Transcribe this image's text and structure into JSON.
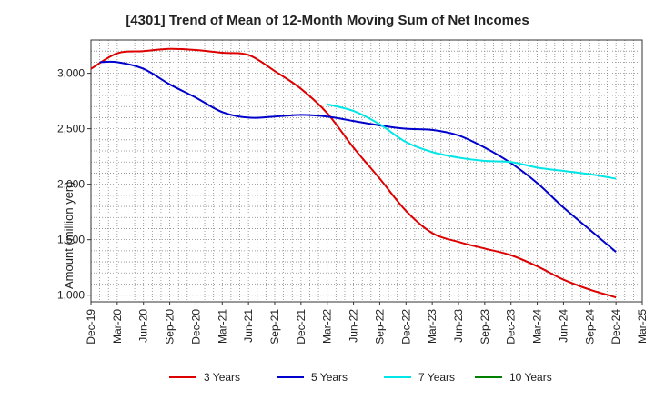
{
  "chart_data": {
    "type": "line",
    "title": "[4301]  Trend of Mean of 12-Month Moving Sum of Net Incomes",
    "ylabel": "Amount (million yen)",
    "xlabel": "",
    "ylim": [
      940,
      3300
    ],
    "yticks": [
      1000,
      1500,
      2000,
      2500,
      3000
    ],
    "ytick_labels": [
      "1,000",
      "1,500",
      "2,000",
      "2,500",
      "3,000"
    ],
    "xticks": [
      "Dec-19",
      "Mar-20",
      "Jun-20",
      "Sep-20",
      "Dec-20",
      "Mar-21",
      "Jun-21",
      "Sep-21",
      "Dec-21",
      "Mar-22",
      "Jun-22",
      "Sep-22",
      "Dec-22",
      "Mar-23",
      "Jun-23",
      "Sep-23",
      "Dec-23",
      "Mar-24",
      "Jun-24",
      "Sep-24",
      "Dec-24",
      "Mar-25"
    ],
    "grid": true,
    "legend_position": "bottom",
    "series": [
      {
        "name": "3 Years",
        "color": "#dd0000",
        "x": [
          "Dec-19",
          "Mar-20",
          "Jun-20",
          "Sep-20",
          "Dec-20",
          "Mar-21",
          "Jun-21",
          "Sep-21",
          "Dec-21",
          "Mar-22",
          "Jun-22",
          "Sep-22",
          "Dec-22",
          "Mar-23",
          "Jun-23",
          "Sep-23",
          "Dec-23",
          "Mar-24",
          "Jun-24",
          "Sep-24",
          "Dec-24"
        ],
        "values": [
          3040,
          3180,
          3200,
          3220,
          3210,
          3185,
          3165,
          3020,
          2860,
          2640,
          2330,
          2050,
          1760,
          1560,
          1480,
          1420,
          1360,
          1260,
          1140,
          1050,
          980
        ]
      },
      {
        "name": "5 Years",
        "color": "#0000cc",
        "x": [
          "Jan-20",
          "Mar-20",
          "Jun-20",
          "Sep-20",
          "Dec-20",
          "Mar-21",
          "Jun-21",
          "Sep-21",
          "Dec-21",
          "Mar-22",
          "Jun-22",
          "Sep-22",
          "Dec-22",
          "Mar-23",
          "Jun-23",
          "Sep-23",
          "Dec-23",
          "Mar-24",
          "Jun-24",
          "Sep-24",
          "Dec-24"
        ],
        "values": [
          3100,
          3100,
          3040,
          2900,
          2780,
          2650,
          2600,
          2610,
          2625,
          2610,
          2570,
          2530,
          2500,
          2490,
          2440,
          2330,
          2190,
          2010,
          1790,
          1590,
          1390
        ]
      },
      {
        "name": "7 Years",
        "color": "#00e6e6",
        "x": [
          "Mar-22",
          "Jun-22",
          "Sep-22",
          "Dec-22",
          "Mar-23",
          "Jun-23",
          "Sep-23",
          "Dec-23",
          "Mar-24",
          "Jun-24",
          "Sep-24",
          "Dec-24"
        ],
        "values": [
          2720,
          2660,
          2540,
          2380,
          2290,
          2240,
          2210,
          2200,
          2150,
          2120,
          2090,
          2050
        ]
      },
      {
        "name": "10 Years",
        "color": "#008000",
        "x": [],
        "values": []
      }
    ]
  }
}
